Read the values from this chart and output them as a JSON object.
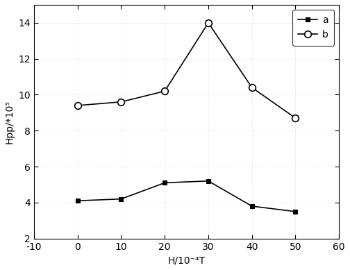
{
  "x": [
    0,
    10,
    20,
    30,
    40,
    50
  ],
  "series_a": [
    4.1,
    4.2,
    5.1,
    5.2,
    3.8,
    3.5
  ],
  "series_b": [
    9.4,
    9.6,
    10.2,
    14.0,
    10.4,
    8.7
  ],
  "xlabel": "H/10⁻⁴T",
  "ylabel": "Hpp/*10⁵",
  "xlim": [
    -10,
    60
  ],
  "ylim": [
    2,
    15
  ],
  "yticks": [
    2,
    4,
    6,
    8,
    10,
    12,
    14
  ],
  "xticks": [
    -10,
    0,
    10,
    20,
    30,
    40,
    50,
    60
  ],
  "legend_a": "a",
  "legend_b": "b",
  "line_color": "black",
  "grid_color": "#d0d0d0",
  "figsize": [
    5.04,
    3.89
  ],
  "dpi": 100
}
